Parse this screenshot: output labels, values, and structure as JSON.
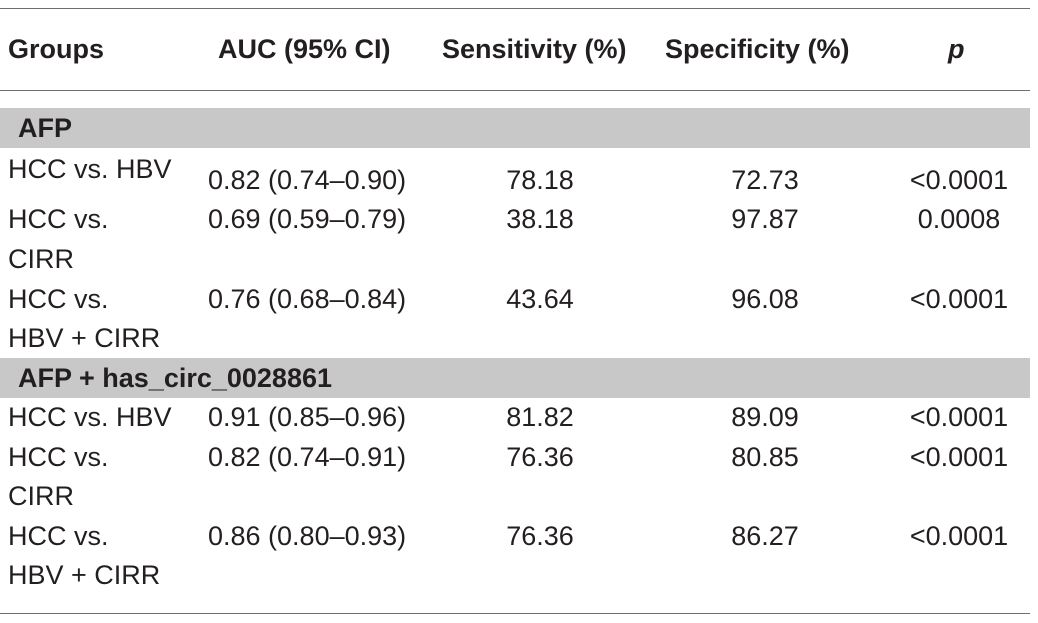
{
  "columns": {
    "groups": "Groups",
    "auc": "AUC (95% CI)",
    "sensitivity": "Sensitivity (%)",
    "specificity": "Specificity (%)",
    "p": "p"
  },
  "sections": [
    {
      "title": "AFP",
      "rows": [
        {
          "group_line1": "HCC vs. HBV",
          "group_line2": "",
          "auc": "0.82 (0.74–0.90)",
          "sensitivity": "78.18",
          "specificity": "72.73",
          "p": "<0.0001"
        },
        {
          "group_line1": "HCC vs.",
          "group_line2": "CIRR",
          "auc": "0.69 (0.59–0.79)",
          "sensitivity": "38.18",
          "specificity": "97.87",
          "p": "0.0008"
        },
        {
          "group_line1": "HCC vs.",
          "group_line2": "HBV + CIRR",
          "auc": "0.76 (0.68–0.84)",
          "sensitivity": "43.64",
          "specificity": "96.08",
          "p": "<0.0001"
        }
      ]
    },
    {
      "title": "AFP + has_circ_0028861",
      "rows": [
        {
          "group_line1": "HCC vs. HBV",
          "group_line2": "",
          "auc": "0.91 (0.85–0.96)",
          "sensitivity": "81.82",
          "specificity": "89.09",
          "p": "<0.0001"
        },
        {
          "group_line1": "HCC vs.",
          "group_line2": "CIRR",
          "auc": "0.82 (0.74–0.91)",
          "sensitivity": "76.36",
          "specificity": "80.85",
          "p": "<0.0001"
        },
        {
          "group_line1": "HCC vs.",
          "group_line2": "HBV + CIRR",
          "auc": "0.86 (0.80–0.93)",
          "sensitivity": "76.36",
          "specificity": "86.27",
          "p": "<0.0001"
        }
      ]
    }
  ]
}
